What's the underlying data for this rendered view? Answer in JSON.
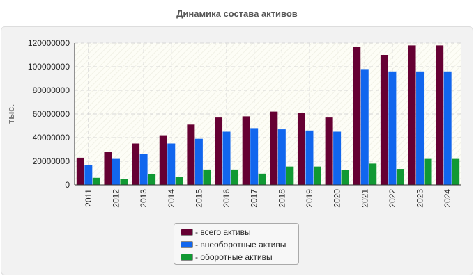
{
  "chart_data": {
    "type": "bar",
    "title": "Динамика состава активов",
    "ylabel": "тыс.",
    "xlabel": "",
    "ylim": [
      0,
      120000000
    ],
    "yticks": [
      0,
      20000000,
      40000000,
      60000000,
      80000000,
      100000000,
      120000000
    ],
    "grid": true,
    "legend_position": "bottom-center",
    "categories": [
      "2011",
      "2012",
      "2013",
      "2014",
      "2015",
      "2016",
      "2017",
      "2018",
      "2019",
      "2020",
      "2021",
      "2022",
      "2023",
      "2024"
    ],
    "series": [
      {
        "name": "всего активы",
        "color": "#660033",
        "values": [
          23000000,
          28000000,
          35000000,
          42000000,
          51000000,
          57000000,
          58000000,
          62000000,
          61000000,
          57000000,
          117000000,
          110000000,
          118000000,
          118000000
        ]
      },
      {
        "name": "внеоборотные активы",
        "color": "#1166ee",
        "values": [
          17000000,
          22000000,
          26000000,
          35000000,
          39000000,
          45000000,
          48000000,
          47000000,
          46000000,
          45000000,
          98000000,
          96000000,
          96000000,
          96000000
        ]
      },
      {
        "name": "оборотные активы",
        "color": "#119933",
        "values": [
          6000000,
          5000000,
          9000000,
          7000000,
          13000000,
          13000000,
          9500000,
          15500000,
          15500000,
          12500000,
          18000000,
          13500000,
          22000000,
          22000000
        ]
      }
    ]
  },
  "legend": {
    "items": [
      {
        "label": "- всего активы",
        "color": "#660033"
      },
      {
        "label": "- внеоборотные активы",
        "color": "#1166ee"
      },
      {
        "label": "- оборотные активы",
        "color": "#119933"
      }
    ]
  }
}
